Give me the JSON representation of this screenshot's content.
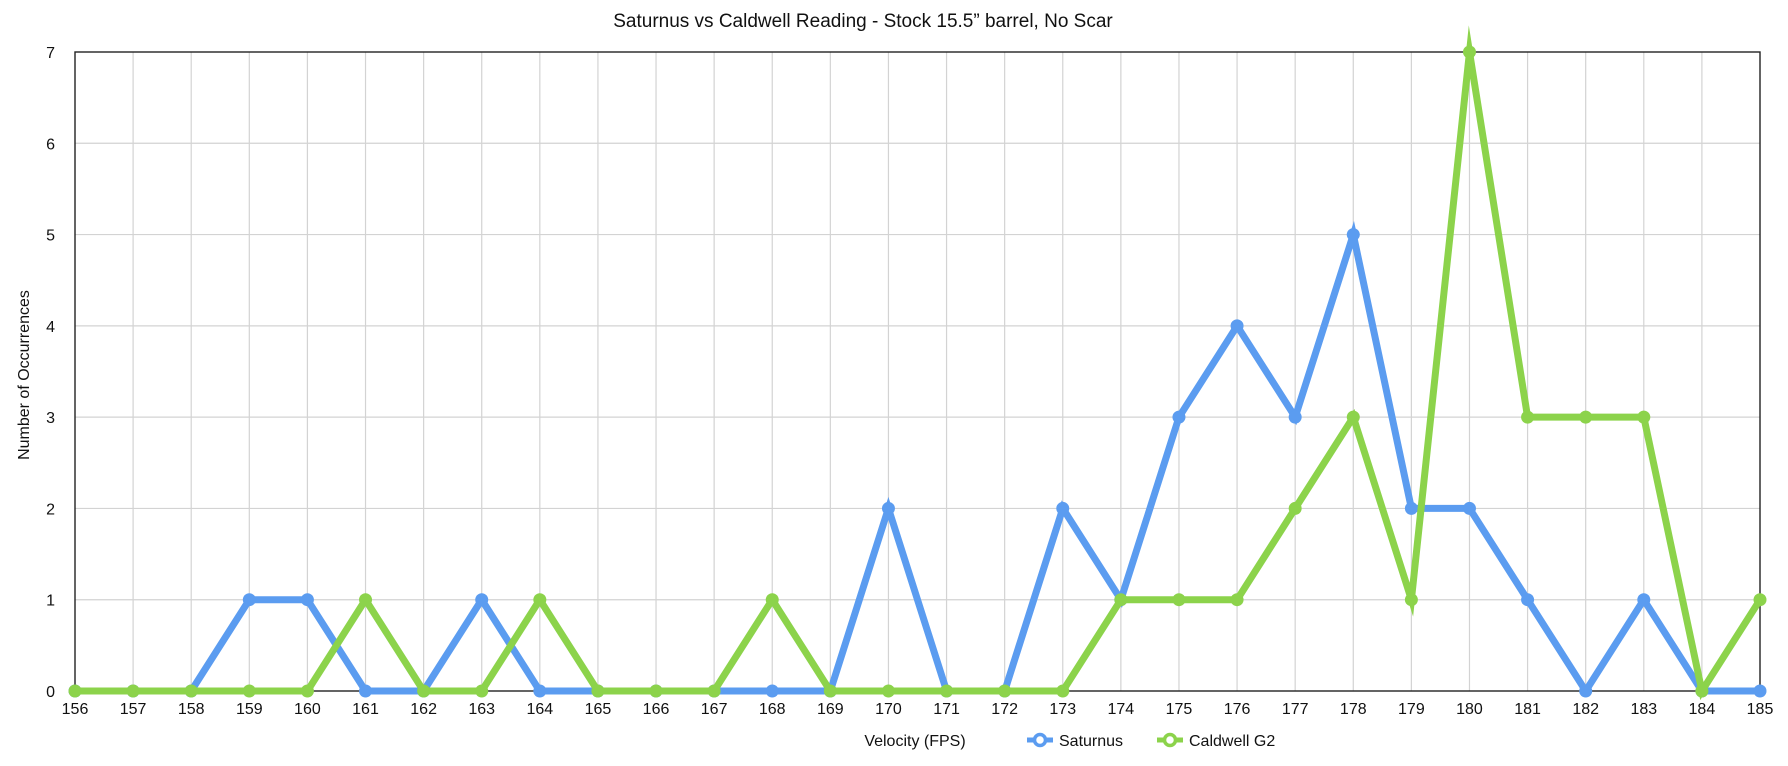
{
  "chart_data": {
    "type": "line",
    "title": "Saturnus vs Caldwell Reading - Stock 15.5” barrel, No Scar",
    "xlabel": "Velocity (FPS)",
    "ylabel": "Number of Occurrences",
    "x": [
      156,
      157,
      158,
      159,
      160,
      161,
      162,
      163,
      164,
      165,
      166,
      167,
      168,
      169,
      170,
      171,
      172,
      173,
      174,
      175,
      176,
      177,
      178,
      179,
      180,
      181,
      182,
      183,
      184,
      185
    ],
    "ylim": [
      0,
      7
    ],
    "yticks": [
      0,
      1,
      2,
      3,
      4,
      5,
      6,
      7
    ],
    "grid": true,
    "legend_position": "bottom",
    "series": [
      {
        "name": "Saturnus",
        "color": "#5B9CF0",
        "values": [
          0,
          0,
          0,
          1,
          1,
          0,
          0,
          1,
          0,
          0,
          0,
          0,
          0,
          0,
          2,
          0,
          0,
          2,
          1,
          3,
          4,
          3,
          5,
          2,
          2,
          1,
          0,
          1,
          0,
          0
        ]
      },
      {
        "name": "Caldwell G2",
        "color": "#8CD34B",
        "values": [
          0,
          0,
          0,
          0,
          0,
          1,
          0,
          0,
          1,
          0,
          0,
          0,
          1,
          0,
          0,
          0,
          0,
          0,
          1,
          1,
          1,
          2,
          3,
          1,
          7,
          3,
          3,
          3,
          0,
          1
        ]
      }
    ]
  }
}
